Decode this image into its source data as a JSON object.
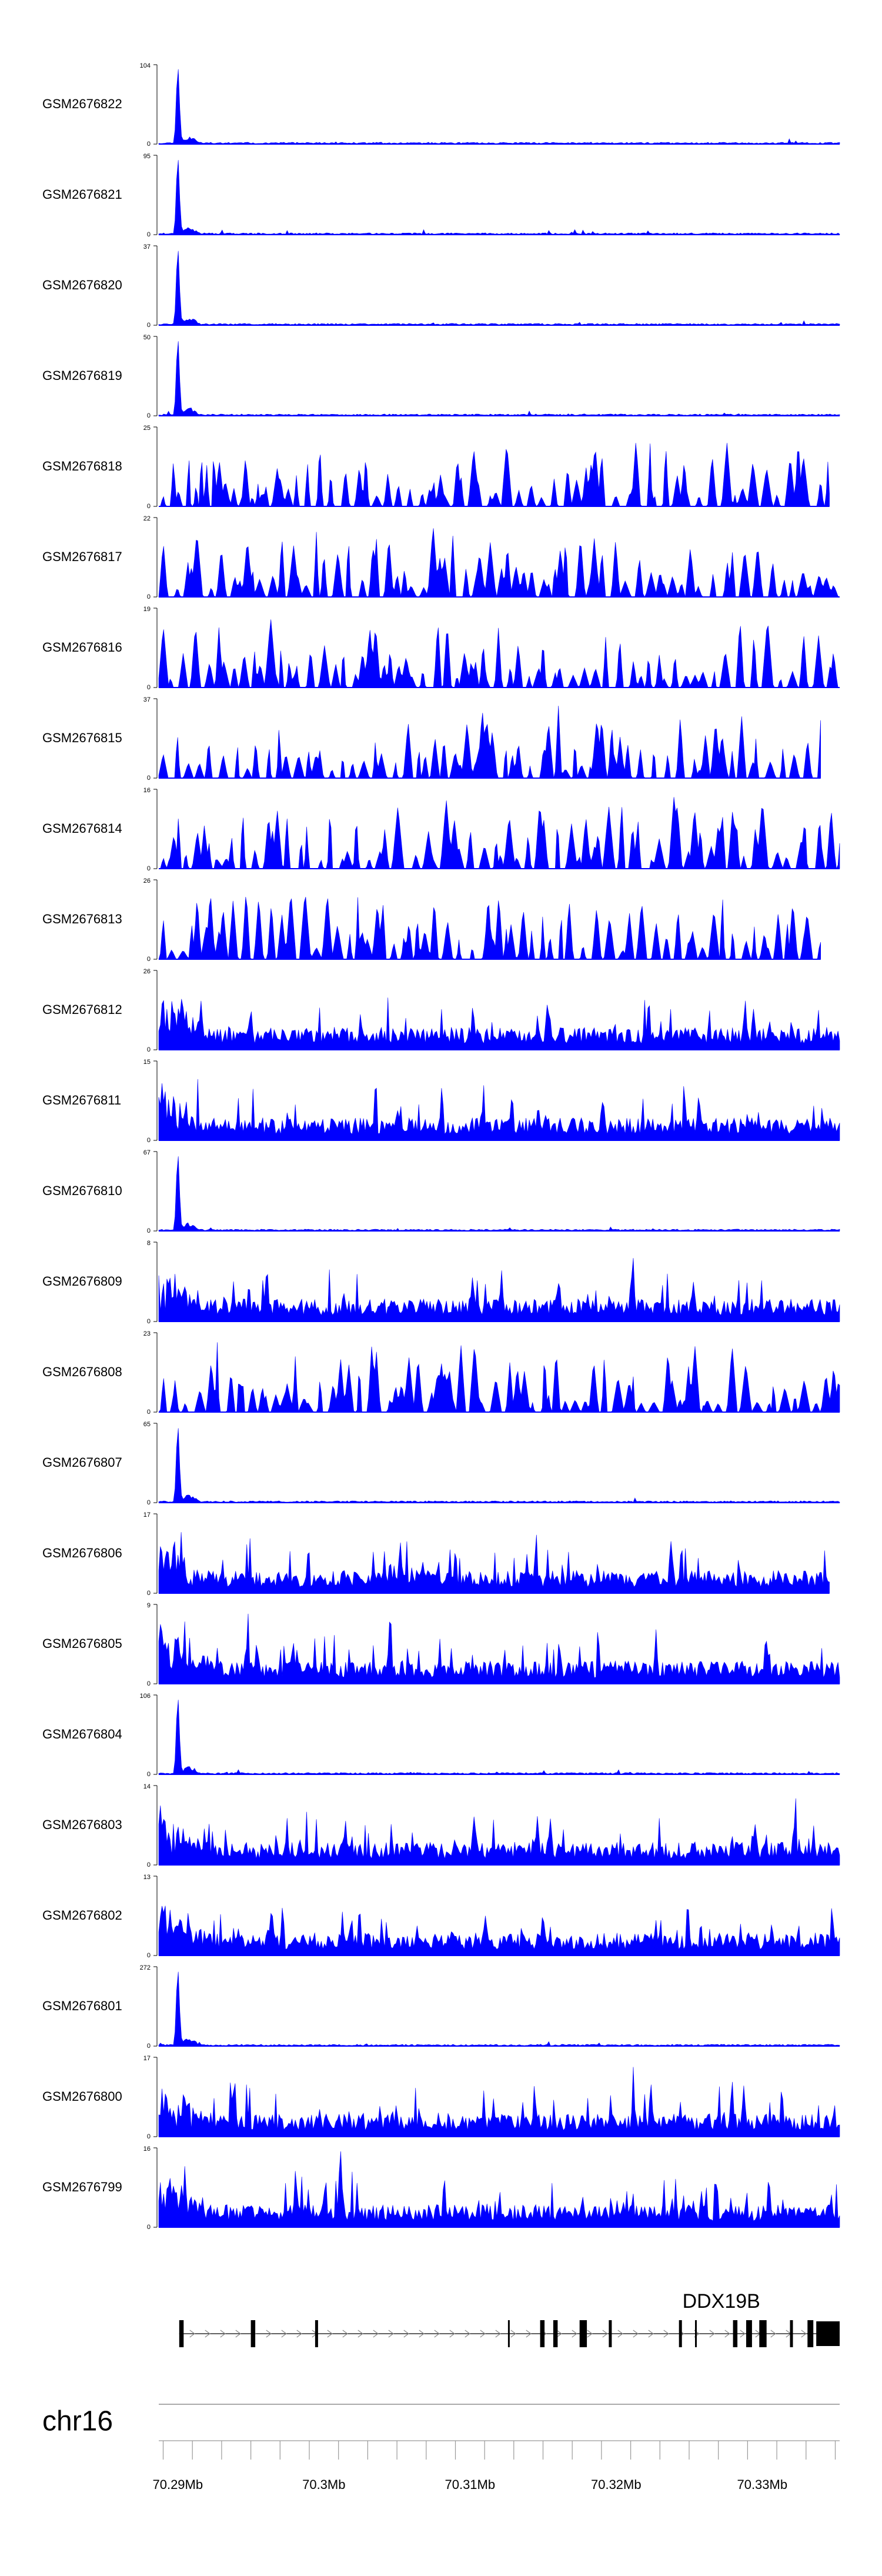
{
  "chart_data": {
    "type": "area",
    "title": "",
    "color": "#0000ff",
    "axis_color": "#000000",
    "xlim": [
      70.2887,
      70.3353
    ],
    "x_unit": "Mb",
    "x_ticks": [
      {
        "value": 70.29,
        "label": "70.29Mb"
      },
      {
        "value": 70.3,
        "label": "70.3Mb"
      },
      {
        "value": 70.31,
        "label": "70.31Mb"
      },
      {
        "value": 70.32,
        "label": "70.32Mb"
      },
      {
        "value": 70.33,
        "label": "70.33Mb"
      }
    ],
    "chromosome": "chr16",
    "gene": {
      "name": "DDX19B",
      "start": 70.2901,
      "end": 70.3353,
      "strand": "+",
      "exons": [
        {
          "start": 70.2901,
          "end": 70.2904
        },
        {
          "start": 70.295,
          "end": 70.2953
        },
        {
          "start": 70.2994,
          "end": 70.2996
        },
        {
          "start": 70.3126,
          "end": 70.3127
        },
        {
          "start": 70.3148,
          "end": 70.3151
        },
        {
          "start": 70.3157,
          "end": 70.316
        },
        {
          "start": 70.3175,
          "end": 70.318
        },
        {
          "start": 70.3195,
          "end": 70.3197
        },
        {
          "start": 70.3243,
          "end": 70.3245
        },
        {
          "start": 70.3254,
          "end": 70.3255
        },
        {
          "start": 70.328,
          "end": 70.3283
        },
        {
          "start": 70.3289,
          "end": 70.3293
        },
        {
          "start": 70.3298,
          "end": 70.3303
        },
        {
          "start": 70.3319,
          "end": 70.3321
        },
        {
          "start": 70.3331,
          "end": 70.3335
        },
        {
          "start": 70.3337,
          "end": 70.3353
        }
      ]
    },
    "tracks": [
      {
        "name": "GSM2676822",
        "ymax": "104",
        "ymin": "0",
        "profile": "peak",
        "seed": 11,
        "end": 70.3353
      },
      {
        "name": "GSM2676821",
        "ymax": "95",
        "ymin": "0",
        "profile": "peak",
        "seed": 23,
        "end": 70.3353
      },
      {
        "name": "GSM2676820",
        "ymax": "37",
        "ymin": "0",
        "profile": "peak",
        "seed": 37,
        "end": 70.3353
      },
      {
        "name": "GSM2676819",
        "ymax": "50",
        "ymin": "0",
        "profile": "peak",
        "seed": 41,
        "end": 70.3353
      },
      {
        "name": "GSM2676818",
        "ymax": "25",
        "ymin": "0",
        "profile": "sparse",
        "seed": 53,
        "end": 70.3346
      },
      {
        "name": "GSM2676817",
        "ymax": "22",
        "ymin": "0",
        "profile": "sparse",
        "seed": 61,
        "end": 70.3353
      },
      {
        "name": "GSM2676816",
        "ymax": "19",
        "ymin": "0",
        "profile": "sparse",
        "seed": 73,
        "end": 70.3353
      },
      {
        "name": "GSM2676815",
        "ymax": "37",
        "ymin": "0",
        "profile": "sparse",
        "seed": 89,
        "end": 70.334
      },
      {
        "name": "GSM2676814",
        "ymax": "16",
        "ymin": "0",
        "profile": "sparse",
        "seed": 97,
        "end": 70.3353
      },
      {
        "name": "GSM2676813",
        "ymax": "26",
        "ymin": "0",
        "profile": "sparse",
        "seed": 103,
        "end": 70.334
      },
      {
        "name": "GSM2676812",
        "ymax": "26",
        "ymin": "0",
        "profile": "dense",
        "seed": 113,
        "end": 70.3353
      },
      {
        "name": "GSM2676811",
        "ymax": "15",
        "ymin": "0",
        "profile": "dense",
        "seed": 127,
        "end": 70.3353
      },
      {
        "name": "GSM2676810",
        "ymax": "67",
        "ymin": "0",
        "profile": "peak",
        "seed": 131,
        "end": 70.3353
      },
      {
        "name": "GSM2676809",
        "ymax": "8",
        "ymin": "0",
        "profile": "dense",
        "seed": 149,
        "end": 70.3353
      },
      {
        "name": "GSM2676808",
        "ymax": "23",
        "ymin": "0",
        "profile": "sparse",
        "seed": 157,
        "end": 70.3353
      },
      {
        "name": "GSM2676807",
        "ymax": "65",
        "ymin": "0",
        "profile": "peak",
        "seed": 163,
        "end": 70.3353
      },
      {
        "name": "GSM2676806",
        "ymax": "17",
        "ymin": "0",
        "profile": "dense",
        "seed": 173,
        "end": 70.3346
      },
      {
        "name": "GSM2676805",
        "ymax": "9",
        "ymin": "0",
        "profile": "dense",
        "seed": 181,
        "end": 70.3353
      },
      {
        "name": "GSM2676804",
        "ymax": "106",
        "ymin": "0",
        "profile": "peak",
        "seed": 191,
        "end": 70.3353
      },
      {
        "name": "GSM2676803",
        "ymax": "14",
        "ymin": "0",
        "profile": "dense",
        "seed": 197,
        "end": 70.3353
      },
      {
        "name": "GSM2676802",
        "ymax": "13",
        "ymin": "0",
        "profile": "dense",
        "seed": 211,
        "end": 70.3353
      },
      {
        "name": "GSM2676801",
        "ymax": "272",
        "ymin": "0",
        "profile": "peak",
        "seed": 223,
        "end": 70.3353
      },
      {
        "name": "GSM2676800",
        "ymax": "17",
        "ymin": "0",
        "profile": "dense",
        "seed": 227,
        "end": 70.3353
      },
      {
        "name": "GSM2676799",
        "ymax": "16",
        "ymin": "0",
        "profile": "dense",
        "seed": 233,
        "end": 70.3353
      }
    ]
  }
}
